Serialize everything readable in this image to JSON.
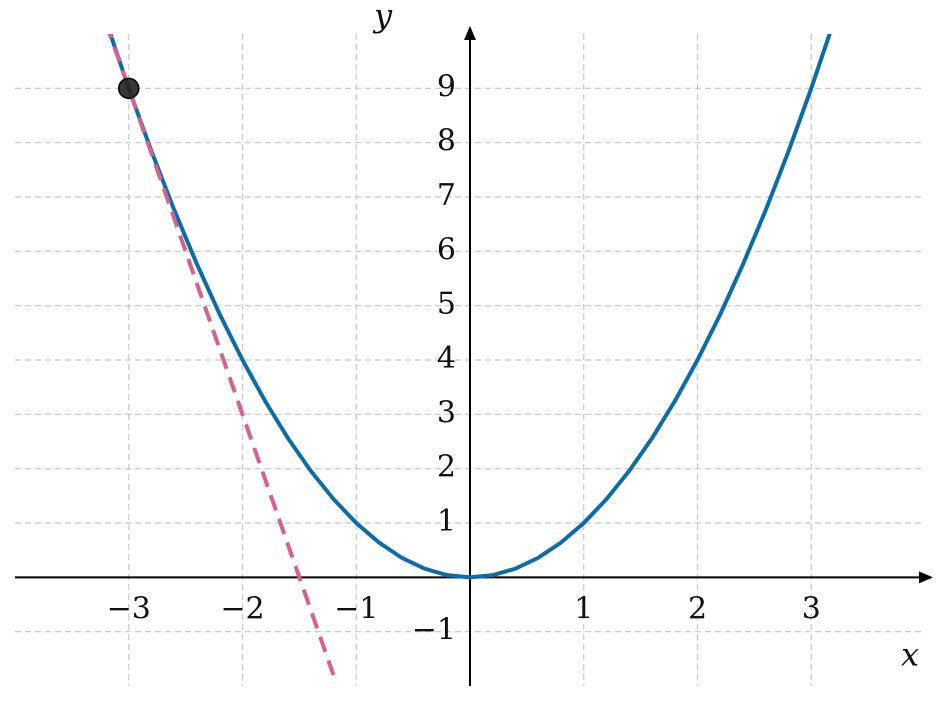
{
  "chart_data": {
    "type": "line",
    "xlabel": "x",
    "ylabel": "y",
    "xlim": [
      -4,
      4
    ],
    "ylim": [
      -2,
      10
    ],
    "xticks": [
      {
        "value": -3,
        "label": "−3"
      },
      {
        "value": -2,
        "label": "−2"
      },
      {
        "value": -1,
        "label": "−1"
      },
      1,
      2,
      3
    ],
    "yticks": [
      {
        "value": -1,
        "label": "−1"
      },
      1,
      2,
      3,
      4,
      5,
      6,
      7,
      8,
      9
    ],
    "grid": true,
    "series": [
      {
        "color": "#0b6ca8",
        "style": "solid",
        "x": [
          -3.2,
          -3,
          -2.8,
          -2.6,
          -2.4,
          -2.2,
          -2,
          -1.8,
          -1.6,
          -1.4,
          -1.2,
          -1,
          -0.8,
          -0.6,
          -0.4,
          -0.2,
          0,
          0.2,
          0.4,
          0.6,
          0.8,
          1,
          1.2,
          1.4,
          1.6,
          1.8,
          2,
          2.2,
          2.4,
          2.6,
          2.8,
          3,
          3.2
        ],
        "values": [
          10.24,
          9,
          7.84,
          6.76,
          5.76,
          4.84,
          4,
          3.24,
          2.56,
          1.96,
          1.44,
          1,
          0.64,
          0.36,
          0.16,
          0.04,
          0,
          0.04,
          0.16,
          0.36,
          0.64,
          1,
          1.44,
          1.96,
          2.56,
          3.24,
          4,
          4.84,
          5.76,
          6.76,
          7.84,
          9,
          10.24
        ]
      },
      {
        "color": "#d6618f",
        "style": "dashed",
        "x": [
          -3.2,
          -1.2
        ],
        "values": [
          10.2,
          -1.8
        ]
      }
    ],
    "points": {
      "color": "#222222",
      "x": [
        -3
      ],
      "values": [
        9
      ]
    }
  }
}
